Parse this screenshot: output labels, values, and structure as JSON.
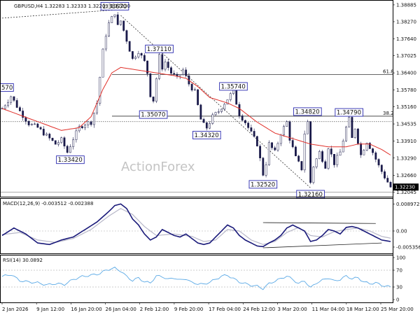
{
  "chart_data": [
    {
      "type": "candlestick",
      "title": "GBPUSD,H4  1.32283 1.32333 1.32209 1.32230",
      "watermark": "ActionForex",
      "price_range": [
        1.3198,
        1.3896
      ],
      "y_ticks": [
        "1.38885",
        "1.38270",
        "1.37640",
        "1.37025",
        "1.36400",
        "1.35780",
        "1.35160",
        "1.34535",
        "1.33910",
        "1.33290",
        "1.32660",
        "1.32045"
      ],
      "last_price": "1.32230",
      "fib_levels": [
        {
          "label": "61.8",
          "price": 1.3634
        },
        {
          "label": "38.2",
          "price": 1.3482
        }
      ],
      "hlines": [
        1.3462,
        1.32045
      ],
      "price_labels": [
        {
          "text": "1.38670",
          "i": 38,
          "price": 1.3867
        },
        {
          "text": "1.37110",
          "i": 53,
          "price": 1.3711
        },
        {
          "text": "1.35740",
          "i": 78,
          "price": 1.3574
        },
        {
          "text": "1.35070",
          "i": 51,
          "price": 1.3507
        },
        {
          "text": "1.34820",
          "i": 103,
          "price": 1.3482
        },
        {
          "text": "1.34790",
          "i": 117,
          "price": 1.3479
        },
        {
          "text": "1.34320",
          "i": 69,
          "price": 1.3432
        },
        {
          "text": "1.33420",
          "i": 23,
          "price": 1.3342
        },
        {
          "text": "1.32520",
          "i": 88,
          "price": 1.3252
        },
        {
          "text": "1.32160",
          "i": 104,
          "price": 1.3216
        },
        {
          "text": "570",
          "i": 0,
          "price": 1.357
        }
      ],
      "x_labels": [
        "2 Jan 2026",
        "9 Jan 12:00",
        "16 Jan 20:00",
        "26 Jan 04:00",
        "2 Feb 12:00",
        "9 Feb 20:00",
        "17 Feb 04:00",
        "24 Feb 12:00",
        "3 Mar 20:00",
        "11 Mar 04:00",
        "18 Mar 12:00",
        "25 Mar 20:00"
      ],
      "close_path": [
        [
          0,
          1.351
        ],
        [
          3,
          1.3555
        ],
        [
          6,
          1.35
        ],
        [
          9,
          1.3455
        ],
        [
          12,
          1.344
        ],
        [
          15,
          1.341
        ],
        [
          18,
          1.338
        ],
        [
          20,
          1.3395
        ],
        [
          22,
          1.335
        ],
        [
          24,
          1.34
        ],
        [
          26,
          1.344
        ],
        [
          28,
          1.3455
        ],
        [
          30,
          1.346
        ],
        [
          32,
          1.353
        ],
        [
          34,
          1.372
        ],
        [
          35,
          1.378
        ],
        [
          36,
          1.382
        ],
        [
          38,
          1.386
        ],
        [
          39,
          1.381
        ],
        [
          40,
          1.383
        ],
        [
          42,
          1.376
        ],
        [
          44,
          1.369
        ],
        [
          46,
          1.372
        ],
        [
          48,
          1.368
        ],
        [
          49,
          1.364
        ],
        [
          50,
          1.356
        ],
        [
          51,
          1.354
        ],
        [
          52,
          1.362
        ],
        [
          53,
          1.37
        ],
        [
          54,
          1.366
        ],
        [
          55,
          1.368
        ],
        [
          57,
          1.364
        ],
        [
          59,
          1.362
        ],
        [
          61,
          1.365
        ],
        [
          63,
          1.36
        ],
        [
          65,
          1.357
        ],
        [
          66,
          1.352
        ],
        [
          67,
          1.347
        ],
        [
          68,
          1.345
        ],
        [
          69,
          1.344
        ],
        [
          71,
          1.348
        ],
        [
          73,
          1.35
        ],
        [
          75,
          1.353
        ],
        [
          77,
          1.356
        ],
        [
          78,
          1.357
        ],
        [
          80,
          1.349
        ],
        [
          82,
          1.346
        ],
        [
          84,
          1.342
        ],
        [
          86,
          1.338
        ],
        [
          88,
          1.327
        ],
        [
          89,
          1.331
        ],
        [
          90,
          1.338
        ],
        [
          92,
          1.335
        ],
        [
          94,
          1.342
        ],
        [
          96,
          1.346
        ],
        [
          97,
          1.34
        ],
        [
          99,
          1.333
        ],
        [
          101,
          1.329
        ],
        [
          102,
          1.342
        ],
        [
          103,
          1.346
        ],
        [
          104,
          1.324
        ],
        [
          105,
          1.33
        ],
        [
          107,
          1.335
        ],
        [
          109,
          1.33
        ],
        [
          110,
          1.337
        ],
        [
          112,
          1.331
        ],
        [
          114,
          1.335
        ],
        [
          116,
          1.344
        ],
        [
          117,
          1.347
        ],
        [
          118,
          1.34
        ],
        [
          119,
          1.344
        ],
        [
          121,
          1.334
        ],
        [
          123,
          1.339
        ],
        [
          125,
          1.335
        ],
        [
          127,
          1.33
        ],
        [
          129,
          1.326
        ],
        [
          131,
          1.3223
        ]
      ],
      "ma_path": [
        [
          0,
          1.351
        ],
        [
          10,
          1.347
        ],
        [
          20,
          1.343
        ],
        [
          26,
          1.344
        ],
        [
          30,
          1.348
        ],
        [
          34,
          1.358
        ],
        [
          37,
          1.364
        ],
        [
          40,
          1.366
        ],
        [
          46,
          1.365
        ],
        [
          52,
          1.364
        ],
        [
          58,
          1.363
        ],
        [
          62,
          1.362
        ],
        [
          66,
          1.359
        ],
        [
          70,
          1.355
        ],
        [
          76,
          1.353
        ],
        [
          80,
          1.351
        ],
        [
          86,
          1.346
        ],
        [
          92,
          1.342
        ],
        [
          98,
          1.34
        ],
        [
          104,
          1.338
        ],
        [
          110,
          1.337
        ],
        [
          116,
          1.337
        ],
        [
          120,
          1.338
        ],
        [
          124,
          1.338
        ],
        [
          128,
          1.336
        ],
        [
          131,
          1.334
        ]
      ],
      "trendlines": [
        {
          "from": [
            0,
            1.384
          ],
          "to": [
            38,
            1.387
          ]
        },
        {
          "from": [
            40,
            1.385
          ],
          "to": [
            104,
            1.322
          ]
        }
      ]
    },
    {
      "type": "line",
      "title": "MACD(12,26,9) -0.003512 -0.002388",
      "y_ticks": [
        "0.008972",
        "0.00",
        "-0.005356"
      ],
      "range": [
        -0.007,
        0.0105
      ],
      "macd": [
        [
          0,
          -0.0015
        ],
        [
          4,
          0.001
        ],
        [
          8,
          -0.001
        ],
        [
          12,
          -0.004
        ],
        [
          16,
          -0.0045
        ],
        [
          20,
          -0.003
        ],
        [
          24,
          -0.002
        ],
        [
          28,
          0.0005
        ],
        [
          32,
          0.003
        ],
        [
          36,
          0.0065
        ],
        [
          38,
          0.0085
        ],
        [
          40,
          0.009
        ],
        [
          42,
          0.0075
        ],
        [
          44,
          0.004
        ],
        [
          46,
          0.002
        ],
        [
          48,
          -0.001
        ],
        [
          50,
          -0.003
        ],
        [
          52,
          -0.002
        ],
        [
          54,
          0.0005
        ],
        [
          56,
          -0.0005
        ],
        [
          58,
          -0.0015
        ],
        [
          60,
          -0.002
        ],
        [
          62,
          -0.001
        ],
        [
          64,
          -0.0025
        ],
        [
          66,
          -0.004
        ],
        [
          68,
          -0.0045
        ],
        [
          70,
          -0.004
        ],
        [
          72,
          -0.002
        ],
        [
          74,
          0.0
        ],
        [
          76,
          0.002
        ],
        [
          78,
          0.001
        ],
        [
          80,
          -0.0015
        ],
        [
          82,
          -0.003
        ],
        [
          84,
          -0.004
        ],
        [
          86,
          -0.005
        ],
        [
          88,
          -0.0052
        ],
        [
          90,
          -0.004
        ],
        [
          92,
          -0.003
        ],
        [
          94,
          -0.0015
        ],
        [
          96,
          0.001
        ],
        [
          98,
          0.002
        ],
        [
          100,
          0.001
        ],
        [
          102,
          0.0
        ],
        [
          104,
          -0.0035
        ],
        [
          106,
          -0.003
        ],
        [
          108,
          -0.0015
        ],
        [
          110,
          0.0005
        ],
        [
          112,
          0.0
        ],
        [
          114,
          -0.001
        ],
        [
          116,
          0.0012
        ],
        [
          118,
          0.0015
        ],
        [
          120,
          0.001
        ],
        [
          122,
          0.0
        ],
        [
          124,
          -0.001
        ],
        [
          126,
          -0.002
        ],
        [
          128,
          -0.003
        ],
        [
          131,
          -0.0035
        ]
      ],
      "signal": [
        [
          0,
          -0.0012
        ],
        [
          6,
          -0.0005
        ],
        [
          12,
          -0.003
        ],
        [
          18,
          -0.0038
        ],
        [
          24,
          -0.0025
        ],
        [
          30,
          0.0005
        ],
        [
          36,
          0.005
        ],
        [
          40,
          0.0075
        ],
        [
          44,
          0.0055
        ],
        [
          48,
          0.0015
        ],
        [
          52,
          -0.0015
        ],
        [
          58,
          -0.001
        ],
        [
          64,
          -0.0018
        ],
        [
          68,
          -0.0035
        ],
        [
          72,
          -0.003
        ],
        [
          76,
          0.0005
        ],
        [
          80,
          0.0
        ],
        [
          84,
          -0.003
        ],
        [
          88,
          -0.0045
        ],
        [
          92,
          -0.0035
        ],
        [
          96,
          -0.0005
        ],
        [
          100,
          0.0012
        ],
        [
          104,
          -0.0015
        ],
        [
          108,
          -0.002
        ],
        [
          112,
          -0.0002
        ],
        [
          116,
          0.0005
        ],
        [
          120,
          0.001
        ],
        [
          124,
          0.0
        ],
        [
          128,
          -0.0018
        ],
        [
          131,
          -0.0024
        ]
      ],
      "trendlines": [
        {
          "from": [
            88,
            0.0028
          ],
          "to": [
            126,
            0.0025
          ]
        },
        {
          "from": [
            88,
            -0.0056
          ],
          "to": [
            128,
            -0.004
          ]
        }
      ]
    },
    {
      "type": "line",
      "title": "RSI(14) 30.0892",
      "y_ticks": [
        "100",
        "70",
        "30",
        "0"
      ],
      "range": [
        0,
        100
      ],
      "hlines": [
        70,
        30
      ],
      "rsi": [
        [
          0,
          55
        ],
        [
          3,
          60
        ],
        [
          6,
          45
        ],
        [
          9,
          42
        ],
        [
          12,
          40
        ],
        [
          15,
          35
        ],
        [
          18,
          38
        ],
        [
          21,
          36
        ],
        [
          24,
          48
        ],
        [
          27,
          55
        ],
        [
          30,
          58
        ],
        [
          33,
          62
        ],
        [
          35,
          70
        ],
        [
          36,
          72
        ],
        [
          38,
          75
        ],
        [
          40,
          68
        ],
        [
          42,
          55
        ],
        [
          44,
          45
        ],
        [
          46,
          52
        ],
        [
          48,
          42
        ],
        [
          50,
          40
        ],
        [
          52,
          56
        ],
        [
          54,
          55
        ],
        [
          56,
          48
        ],
        [
          58,
          52
        ],
        [
          60,
          46
        ],
        [
          62,
          50
        ],
        [
          64,
          40
        ],
        [
          66,
          38
        ],
        [
          68,
          36
        ],
        [
          70,
          42
        ],
        [
          72,
          48
        ],
        [
          74,
          56
        ],
        [
          76,
          58
        ],
        [
          78,
          50
        ],
        [
          80,
          42
        ],
        [
          82,
          38
        ],
        [
          84,
          34
        ],
        [
          86,
          32
        ],
        [
          88,
          26
        ],
        [
          90,
          38
        ],
        [
          92,
          44
        ],
        [
          94,
          50
        ],
        [
          96,
          56
        ],
        [
          98,
          48
        ],
        [
          100,
          38
        ],
        [
          102,
          45
        ],
        [
          104,
          28
        ],
        [
          106,
          40
        ],
        [
          108,
          46
        ],
        [
          110,
          52
        ],
        [
          112,
          44
        ],
        [
          114,
          48
        ],
        [
          116,
          56
        ],
        [
          118,
          50
        ],
        [
          120,
          52
        ],
        [
          122,
          42
        ],
        [
          124,
          38
        ],
        [
          126,
          40
        ],
        [
          128,
          34
        ],
        [
          131,
          30
        ]
      ]
    }
  ]
}
